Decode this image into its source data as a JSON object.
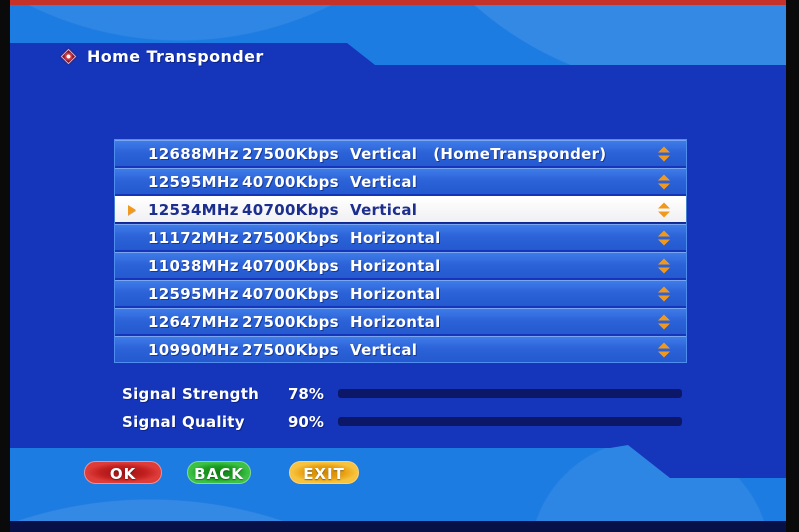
{
  "window": {
    "title": "Home Transponder"
  },
  "list": {
    "selected_index": 2,
    "rows": [
      {
        "frequency": "12688MHz",
        "symbol_rate": "27500Kbps",
        "polarization": "Vertical",
        "tag": "(HomeTransponder)"
      },
      {
        "frequency": "12595MHz",
        "symbol_rate": "40700Kbps",
        "polarization": "Vertical",
        "tag": ""
      },
      {
        "frequency": "12534MHz",
        "symbol_rate": "40700Kbps",
        "polarization": "Vertical",
        "tag": ""
      },
      {
        "frequency": "11172MHz",
        "symbol_rate": "27500Kbps",
        "polarization": "Horizontal",
        "tag": ""
      },
      {
        "frequency": "11038MHz",
        "symbol_rate": "40700Kbps",
        "polarization": "Horizontal",
        "tag": ""
      },
      {
        "frequency": "12595MHz",
        "symbol_rate": "40700Kbps",
        "polarization": "Horizontal",
        "tag": ""
      },
      {
        "frequency": "12647MHz",
        "symbol_rate": "27500Kbps",
        "polarization": "Horizontal",
        "tag": ""
      },
      {
        "frequency": "10990MHz",
        "symbol_rate": "27500Kbps",
        "polarization": "Vertical",
        "tag": ""
      }
    ]
  },
  "signal": {
    "rows": [
      {
        "label": "Signal Strength",
        "percent": "78%",
        "value": 78
      },
      {
        "label": "Signal Quality",
        "percent": "90%",
        "value": 90
      }
    ]
  },
  "buttons": [
    {
      "id": "ok",
      "label": "OK",
      "color": "#c1201f"
    },
    {
      "id": "back",
      "label": "BACK",
      "color": "#1b9e22"
    },
    {
      "id": "exit",
      "label": "EXIT",
      "color": "#e8a011"
    }
  ],
  "icons": {
    "title_bullet": "diamond",
    "selected_pointer": "triangle-right",
    "selected_scroll": "chevron-up-down"
  },
  "colors": {
    "band_blue": "#1d7ce2",
    "panel_blue": "#1535bb",
    "row_blue": "#2c63d9",
    "selected_bg": "#ffffff",
    "selected_text": "#1c2e8e",
    "bar_green": "#27b231",
    "bar_track": "#0c1768",
    "arrow_orange": "#f2991c",
    "top_strip_red": "#c5322a",
    "bottom_strip_navy": "#081048"
  }
}
